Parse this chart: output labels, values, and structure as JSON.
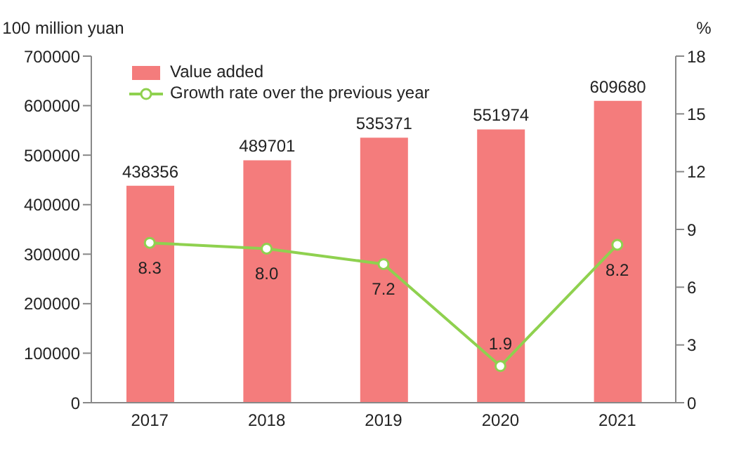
{
  "chart_data": {
    "type": "bar",
    "ylabel": "100 million yuan",
    "y2label": "%",
    "categories": [
      "2017",
      "2018",
      "2019",
      "2020",
      "2021"
    ],
    "series": [
      {
        "name": "Value added",
        "color": "#f47c7c",
        "values": [
          438356,
          489701,
          535371,
          551974,
          609680
        ]
      },
      {
        "name": "Growth rate over the previous year",
        "type": "line",
        "axis": "y2",
        "color": "#8fd14f",
        "values": [
          8.3,
          8.0,
          7.2,
          1.9,
          8.2
        ],
        "value_labels": [
          "8.3",
          "8.0",
          "7.2",
          "1.9",
          "8.2"
        ]
      }
    ],
    "ylim": [
      0,
      700000
    ],
    "yticks": [
      0,
      100000,
      200000,
      300000,
      400000,
      500000,
      600000,
      700000
    ],
    "y2lim": [
      0,
      18
    ],
    "y2ticks": [
      0,
      3,
      6,
      9,
      12,
      15,
      18
    ],
    "data_labels": true,
    "legend": "top left",
    "marker": "circle"
  }
}
